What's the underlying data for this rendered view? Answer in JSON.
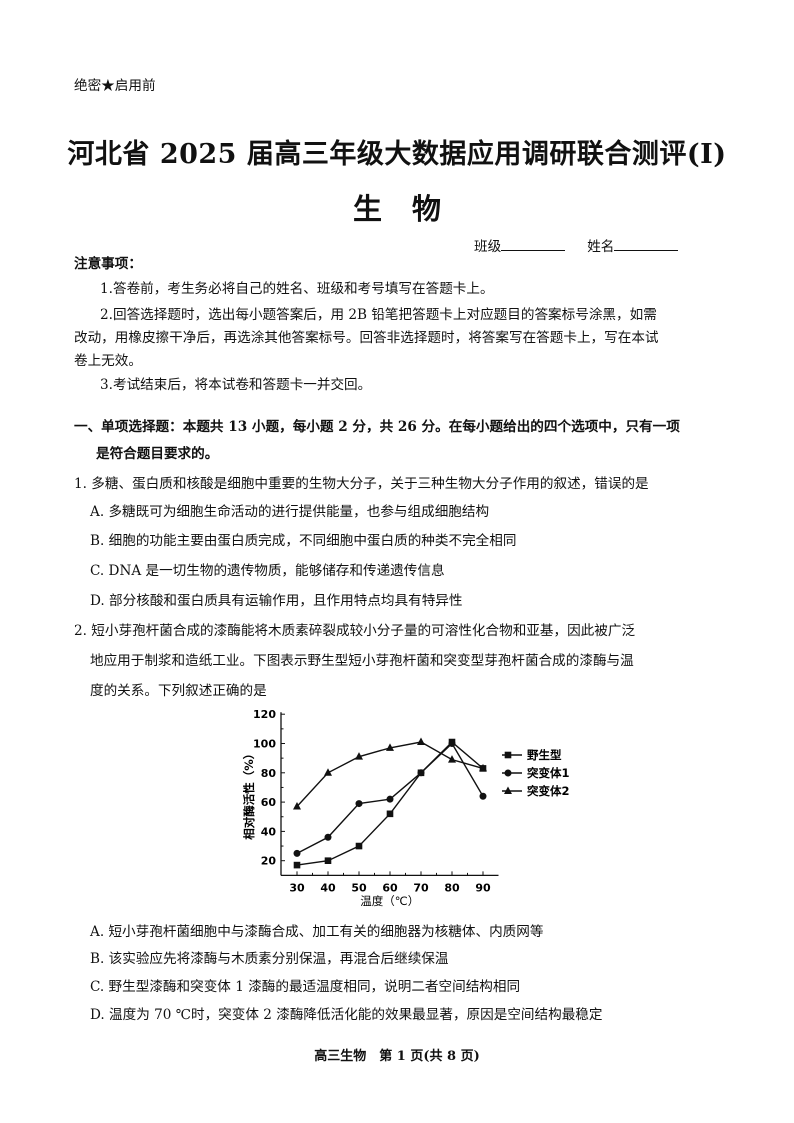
{
  "header": {
    "secret": "绝密★启用前"
  },
  "title": "河北省 2025 届高三年级大数据应用调研联合测评(Ⅰ)",
  "subject": "生物",
  "fields": {
    "class_label": "班级",
    "name_label": "姓名"
  },
  "notice": {
    "heading": "注意事项：",
    "items": [
      "1.答卷前，考生务必将自己的姓名、班级和考号填写在答题卡上。",
      "2.回答选择题时，选出每小题答案后，用 2B 铅笔把答题卡上对应题目的答案标号涂黑，如需",
      "改动，用橡皮擦干净后，再选涂其他答案标号。回答非选择题时，将答案写在答题卡上，写在本试",
      "卷上无效。",
      "3.考试结束后，将本试卷和答题卡一并交回。"
    ]
  },
  "section": {
    "line1": "一、单项选择题：本题共 13 小题，每小题 2 分，共 26 分。在每小题给出的四个选项中，只有一项",
    "line2": "是符合题目要求的。"
  },
  "questions": [
    {
      "stem": [
        "1. 多糖、蛋白质和核酸是细胞中重要的生物大分子，关于三种生物大分子作用的叙述，错误的是"
      ],
      "options": [
        "A. 多糖既可为细胞生命活动的进行提供能量，也参与组成细胞结构",
        "B. 细胞的功能主要由蛋白质完成，不同细胞中蛋白质的种类不完全相同",
        "C. DNA 是一切生物的遗传物质，能够储存和传递遗传信息",
        "D. 部分核酸和蛋白质具有运输作用，且作用特点均具有特异性"
      ]
    },
    {
      "stem": [
        "2. 短小芽孢杆菌合成的漆酶能将木质素碎裂成较小分子量的可溶性化合物和亚基，因此被广泛",
        "地应用于制浆和造纸工业。下图表示野生型短小芽孢杆菌和突变型芽孢杆菌合成的漆酶与温",
        "度的关系。下列叙述正确的是"
      ],
      "options": [
        "A. 短小芽孢杆菌细胞中与漆酶合成、加工有关的细胞器为核糖体、内质网等",
        "B. 该实验应先将漆酶与木质素分别保温，再混合后继续保温",
        "C. 野生型漆酶和突变体 1 漆酶的最适温度相同，说明二者空间结构相同",
        "D. 温度为 70 ℃时，突变体 2 漆酶降低活化能的效果最显著，原因是空间结构最稳定"
      ]
    }
  ],
  "chart_data": {
    "type": "line",
    "xlabel": "温度（℃）",
    "ylabel": "相对酶活性（%）",
    "x": [
      30,
      40,
      50,
      60,
      70,
      80,
      90
    ],
    "xticks": [
      "30",
      "40",
      "50",
      "60",
      "70",
      "80",
      "90"
    ],
    "yticks": [
      "20",
      "40",
      "60",
      "80",
      "100",
      "120"
    ],
    "xlim": [
      25,
      95
    ],
    "ylim": [
      10,
      120
    ],
    "grid": false,
    "legend_position": "right",
    "series": [
      {
        "name": "野生型",
        "marker": "square",
        "values": [
          17,
          20,
          30,
          52,
          80,
          101,
          83
        ]
      },
      {
        "name": "突变体1",
        "marker": "circle",
        "values": [
          25,
          36,
          59,
          62,
          80,
          100,
          64
        ]
      },
      {
        "name": "突变体2",
        "marker": "triangle",
        "values": [
          57,
          80,
          91,
          97,
          101,
          89,
          83
        ]
      }
    ]
  },
  "footer": "高三生物　第 1 页(共 8 页)"
}
